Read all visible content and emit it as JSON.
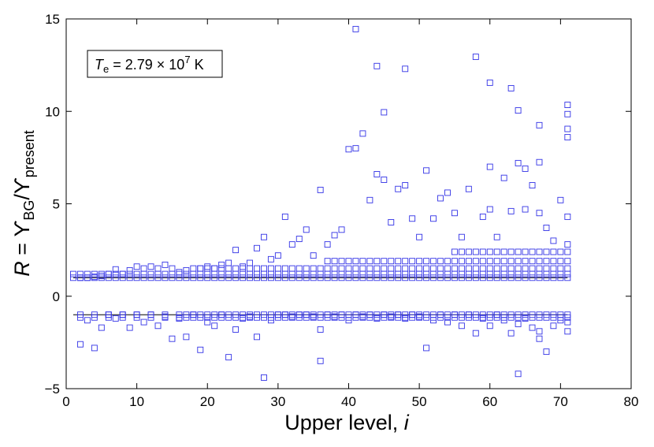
{
  "chart_data": {
    "type": "scatter",
    "title": "",
    "xlabel": {
      "main": "Upper level, ",
      "var": "i"
    },
    "ylabel": {
      "R": "R",
      "eq": " = ϒ",
      "sub1": "BG",
      "slash": "/ϒ",
      "sub2": "present"
    },
    "xlim": [
      0,
      80
    ],
    "ylim": [
      -5,
      15
    ],
    "xticks": [
      0,
      10,
      20,
      30,
      40,
      50,
      60,
      70,
      80
    ],
    "yticks": [
      -5,
      0,
      5,
      10,
      15
    ],
    "xtick_labels": [
      "0",
      "10",
      "20",
      "30",
      "40",
      "50",
      "60",
      "70",
      "80"
    ],
    "ytick_labels": [
      "−5",
      "0",
      "5",
      "10",
      "15"
    ],
    "grid": false,
    "reference_lines": [
      {
        "y": 1,
        "x_range": [
          1,
          71
        ]
      },
      {
        "y": -1,
        "x_range": [
          1,
          71
        ]
      }
    ],
    "annotation": {
      "T": "T",
      "sub": "e",
      "eq": " = 2.79 × 10",
      "sup": "7",
      "unit": " K"
    },
    "marker": {
      "shape": "open-square",
      "color": "#3333e6"
    },
    "series": [
      {
        "name": "",
        "points": [
          [
            2,
            1.0
          ],
          [
            3,
            1.0
          ],
          [
            4,
            1.05
          ],
          [
            5,
            1.1
          ],
          [
            6,
            1.2
          ],
          [
            7,
            1.45
          ],
          [
            8,
            1.2
          ],
          [
            9,
            1.4
          ],
          [
            10,
            1.6
          ],
          [
            11,
            1.5
          ],
          [
            12,
            1.6
          ],
          [
            13,
            1.5
          ],
          [
            14,
            1.7
          ],
          [
            15,
            1.5
          ],
          [
            16,
            1.3
          ],
          [
            17,
            1.4
          ],
          [
            18,
            1.5
          ],
          [
            19,
            1.5
          ],
          [
            20,
            1.6
          ],
          [
            21,
            1.5
          ],
          [
            22,
            1.7
          ],
          [
            23,
            1.8
          ],
          [
            24,
            2.5
          ],
          [
            25,
            1.6
          ],
          [
            26,
            1.8
          ],
          [
            27,
            2.6
          ],
          [
            28,
            3.2
          ],
          [
            29,
            2.0
          ],
          [
            30,
            2.2
          ],
          [
            31,
            4.3
          ],
          [
            32,
            2.8
          ],
          [
            33,
            3.1
          ],
          [
            34,
            3.6
          ],
          [
            35,
            2.2
          ],
          [
            36,
            5.75
          ],
          [
            37,
            2.8
          ],
          [
            38,
            3.3
          ],
          [
            39,
            3.6
          ],
          [
            40,
            7.95
          ],
          [
            41,
            14.45
          ],
          [
            41,
            8.0
          ],
          [
            42,
            8.8
          ],
          [
            43,
            5.2
          ],
          [
            44,
            12.45
          ],
          [
            44,
            6.6
          ],
          [
            45,
            9.95
          ],
          [
            45,
            6.3
          ],
          [
            46,
            4.0
          ],
          [
            47,
            5.8
          ],
          [
            48,
            12.3
          ],
          [
            48,
            6.0
          ],
          [
            49,
            4.2
          ],
          [
            50,
            3.2
          ],
          [
            51,
            6.8
          ],
          [
            52,
            4.2
          ],
          [
            53,
            5.3
          ],
          [
            54,
            5.6
          ],
          [
            55,
            4.5
          ],
          [
            56,
            3.2
          ],
          [
            57,
            5.8
          ],
          [
            58,
            12.95
          ],
          [
            59,
            4.3
          ],
          [
            60,
            11.55
          ],
          [
            60,
            7.0
          ],
          [
            60,
            4.7
          ],
          [
            61,
            3.2
          ],
          [
            62,
            6.4
          ],
          [
            63,
            11.25
          ],
          [
            63,
            4.6
          ],
          [
            64,
            10.05
          ],
          [
            64,
            7.2
          ],
          [
            65,
            6.9
          ],
          [
            65,
            4.7
          ],
          [
            66,
            6.0
          ],
          [
            67,
            9.25
          ],
          [
            67,
            7.25
          ],
          [
            67,
            4.5
          ],
          [
            68,
            3.7
          ],
          [
            69,
            3.0
          ],
          [
            70,
            5.2
          ],
          [
            71,
            10.35
          ],
          [
            71,
            9.85
          ],
          [
            71,
            9.05
          ],
          [
            71,
            8.6
          ],
          [
            71,
            4.3
          ],
          [
            71,
            2.8
          ],
          [
            2,
            -2.6
          ],
          [
            3,
            -1.3
          ],
          [
            4,
            -2.8
          ],
          [
            5,
            -1.7
          ],
          [
            6,
            -1.0
          ],
          [
            7,
            -1.2
          ],
          [
            8,
            -1.0
          ],
          [
            9,
            -1.7
          ],
          [
            10,
            -1.0
          ],
          [
            11,
            -1.4
          ],
          [
            12,
            -1.0
          ],
          [
            13,
            -1.6
          ],
          [
            14,
            -1.1
          ],
          [
            15,
            -2.3
          ],
          [
            16,
            -1.2
          ],
          [
            17,
            -2.2
          ],
          [
            18,
            -1.0
          ],
          [
            19,
            -2.9
          ],
          [
            20,
            -1.4
          ],
          [
            21,
            -1.6
          ],
          [
            22,
            -1.0
          ],
          [
            23,
            -3.3
          ],
          [
            24,
            -1.8
          ],
          [
            25,
            -1.2
          ],
          [
            26,
            -1.1
          ],
          [
            27,
            -2.2
          ],
          [
            28,
            -4.4
          ],
          [
            29,
            -1.3
          ],
          [
            30,
            -1.0
          ],
          [
            31,
            -1.0
          ],
          [
            32,
            -1.1
          ],
          [
            33,
            -1.0
          ],
          [
            34,
            -1.0
          ],
          [
            35,
            -1.1
          ],
          [
            36,
            -3.5
          ],
          [
            36,
            -1.8
          ],
          [
            37,
            -1.0
          ],
          [
            38,
            -1.1
          ],
          [
            39,
            -1.0
          ],
          [
            40,
            -1.3
          ],
          [
            41,
            -1.0
          ],
          [
            42,
            -1.1
          ],
          [
            43,
            -1.0
          ],
          [
            44,
            -1.2
          ],
          [
            45,
            -1.0
          ],
          [
            46,
            -1.1
          ],
          [
            47,
            -1.0
          ],
          [
            48,
            -1.2
          ],
          [
            49,
            -1.0
          ],
          [
            50,
            -1.1
          ],
          [
            51,
            -2.8
          ],
          [
            52,
            -1.3
          ],
          [
            53,
            -1.0
          ],
          [
            54,
            -1.4
          ],
          [
            55,
            -1.0
          ],
          [
            56,
            -1.6
          ],
          [
            57,
            -1.0
          ],
          [
            58,
            -2.0
          ],
          [
            59,
            -1.2
          ],
          [
            60,
            -1.6
          ],
          [
            61,
            -1.0
          ],
          [
            62,
            -1.3
          ],
          [
            63,
            -2.0
          ],
          [
            64,
            -4.2
          ],
          [
            64,
            -1.5
          ],
          [
            65,
            -1.2
          ],
          [
            66,
            -1.7
          ],
          [
            67,
            -2.3
          ],
          [
            67,
            -1.9
          ],
          [
            68,
            -3.0
          ],
          [
            69,
            -1.6
          ],
          [
            70,
            -1.3
          ],
          [
            71,
            -1.9
          ],
          [
            71,
            -1.4
          ]
        ],
        "band_above": {
          "x_start": 1,
          "x_end": 71,
          "y_min": 1.0,
          "steps": [
            1.2,
            1.5,
            1.9,
            2.4
          ]
        },
        "band_below": {
          "x_start": 1,
          "x_end": 71,
          "y_values": [
            -1.0,
            -1.15
          ]
        }
      }
    ]
  }
}
